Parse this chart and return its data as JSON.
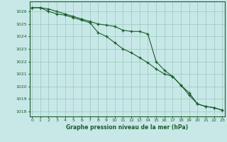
{
  "title": "Graphe pression niveau de la mer (hPa)",
  "background_color": "#c8e8e8",
  "plot_bg_color": "#c8e8e8",
  "grid_color": "#98c8b8",
  "line_color": "#1a5c2a",
  "marker_color": "#1a5c2a",
  "ylim": [
    1017.6,
    1026.8
  ],
  "yticks": [
    1018,
    1019,
    1020,
    1021,
    1022,
    1023,
    1024,
    1025,
    1026
  ],
  "xlim": [
    -0.3,
    23.3
  ],
  "xticks": [
    0,
    1,
    2,
    3,
    4,
    5,
    6,
    7,
    8,
    9,
    10,
    11,
    12,
    13,
    14,
    15,
    16,
    17,
    18,
    19,
    20,
    21,
    22,
    23
  ],
  "series1": [
    1026.3,
    1026.3,
    1026.2,
    1026.0,
    1025.8,
    1025.6,
    1025.4,
    1025.2,
    1025.0,
    1024.9,
    1024.8,
    1024.5,
    1024.4,
    1024.4,
    1024.2,
    1022.0,
    1021.3,
    1020.8,
    1020.1,
    1019.5,
    1018.6,
    1018.4,
    1018.3,
    1018.1
  ],
  "series2": [
    1026.3,
    1026.3,
    1026.0,
    1025.8,
    1025.7,
    1025.5,
    1025.3,
    1025.1,
    1024.3,
    1024.0,
    1023.5,
    1023.0,
    1022.7,
    1022.3,
    1021.9,
    1021.4,
    1021.0,
    1020.8,
    1020.1,
    1019.3,
    1018.6,
    1018.4,
    1018.3,
    1018.1
  ]
}
